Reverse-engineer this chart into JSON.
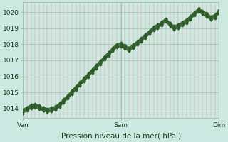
{
  "bg_color": "#cce8e0",
  "grid_color_major": "#a0c0b8",
  "grid_minor_color": "#e08888",
  "line_color": "#2d5a27",
  "ylim": [
    1013.4,
    1020.6
  ],
  "yticks": [
    1014,
    1015,
    1016,
    1017,
    1018,
    1019,
    1020
  ],
  "xlim": [
    0,
    48
  ],
  "xtick_positions": [
    0,
    24,
    48
  ],
  "xtick_labels": [
    "Ven",
    "Sam",
    "Dim"
  ],
  "xlabel": "Pression niveau de la mer( hPa )",
  "series": [
    [
      1013.7,
      1013.85,
      1014.0,
      1014.05,
      1013.95,
      1013.85,
      1013.75,
      1013.82,
      1013.9,
      1014.1,
      1014.35,
      1014.6,
      1014.88,
      1015.15,
      1015.42,
      1015.68,
      1015.95,
      1016.22,
      1016.48,
      1016.75,
      1017.02,
      1017.28,
      1017.55,
      1017.78,
      1017.85,
      1017.7,
      1017.55,
      1017.75,
      1017.95,
      1018.15,
      1018.38,
      1018.62,
      1018.85,
      1019.0,
      1019.18,
      1019.38,
      1019.1,
      1018.9,
      1019.0,
      1019.15,
      1019.3,
      1019.52,
      1019.78,
      1020.0,
      1019.85,
      1019.7,
      1019.5,
      1019.6,
      1019.9
    ],
    [
      1013.75,
      1013.9,
      1014.05,
      1014.1,
      1014.0,
      1013.88,
      1013.8,
      1013.87,
      1013.95,
      1014.15,
      1014.4,
      1014.65,
      1014.93,
      1015.2,
      1015.47,
      1015.73,
      1016.0,
      1016.27,
      1016.53,
      1016.8,
      1017.07,
      1017.33,
      1017.6,
      1017.82,
      1017.9,
      1017.75,
      1017.6,
      1017.8,
      1018.0,
      1018.2,
      1018.43,
      1018.67,
      1018.9,
      1019.05,
      1019.22,
      1019.42,
      1019.15,
      1018.95,
      1019.05,
      1019.2,
      1019.35,
      1019.57,
      1019.82,
      1020.05,
      1019.9,
      1019.75,
      1019.55,
      1019.65,
      1019.95
    ],
    [
      1013.8,
      1013.95,
      1014.1,
      1014.15,
      1014.05,
      1013.93,
      1013.85,
      1013.92,
      1014.0,
      1014.2,
      1014.45,
      1014.7,
      1014.98,
      1015.25,
      1015.52,
      1015.78,
      1016.05,
      1016.32,
      1016.58,
      1016.85,
      1017.12,
      1017.38,
      1017.65,
      1017.87,
      1017.95,
      1017.8,
      1017.65,
      1017.85,
      1018.05,
      1018.25,
      1018.48,
      1018.72,
      1018.95,
      1019.1,
      1019.27,
      1019.47,
      1019.2,
      1019.0,
      1019.1,
      1019.25,
      1019.4,
      1019.62,
      1019.87,
      1020.1,
      1019.95,
      1019.8,
      1019.6,
      1019.7,
      1020.0
    ],
    [
      1013.85,
      1014.0,
      1014.15,
      1014.2,
      1014.1,
      1013.98,
      1013.9,
      1013.97,
      1014.05,
      1014.25,
      1014.5,
      1014.75,
      1015.03,
      1015.3,
      1015.57,
      1015.83,
      1016.1,
      1016.37,
      1016.63,
      1016.9,
      1017.17,
      1017.43,
      1017.7,
      1017.92,
      1018.0,
      1017.85,
      1017.7,
      1017.9,
      1018.1,
      1018.3,
      1018.53,
      1018.77,
      1019.0,
      1019.15,
      1019.32,
      1019.52,
      1019.25,
      1019.05,
      1019.15,
      1019.3,
      1019.45,
      1019.67,
      1019.92,
      1020.15,
      1020.0,
      1019.85,
      1019.65,
      1019.75,
      1020.05
    ],
    [
      1013.9,
      1014.05,
      1014.2,
      1014.25,
      1014.15,
      1014.03,
      1013.95,
      1014.02,
      1014.1,
      1014.3,
      1014.55,
      1014.8,
      1015.08,
      1015.35,
      1015.62,
      1015.88,
      1016.15,
      1016.42,
      1016.68,
      1016.95,
      1017.22,
      1017.48,
      1017.75,
      1017.97,
      1018.05,
      1017.9,
      1017.75,
      1017.95,
      1018.15,
      1018.35,
      1018.58,
      1018.82,
      1019.05,
      1019.2,
      1019.37,
      1019.57,
      1019.3,
      1019.1,
      1019.2,
      1019.35,
      1019.5,
      1019.72,
      1019.97,
      1020.2,
      1020.05,
      1019.9,
      1019.7,
      1019.8,
      1020.1
    ],
    [
      1013.95,
      1014.1,
      1014.25,
      1014.3,
      1014.2,
      1014.08,
      1014.0,
      1014.07,
      1014.15,
      1014.35,
      1014.6,
      1014.85,
      1015.13,
      1015.4,
      1015.67,
      1015.93,
      1016.2,
      1016.47,
      1016.73,
      1017.0,
      1017.27,
      1017.53,
      1017.8,
      1018.02,
      1018.1,
      1017.95,
      1017.8,
      1018.0,
      1018.2,
      1018.4,
      1018.63,
      1018.87,
      1019.1,
      1019.25,
      1019.42,
      1019.62,
      1019.35,
      1019.15,
      1019.25,
      1019.4,
      1019.55,
      1019.77,
      1020.02,
      1020.25,
      1020.1,
      1019.95,
      1019.75,
      1019.85,
      1020.15
    ]
  ],
  "figsize": [
    3.2,
    2.0
  ],
  "dpi": 100
}
